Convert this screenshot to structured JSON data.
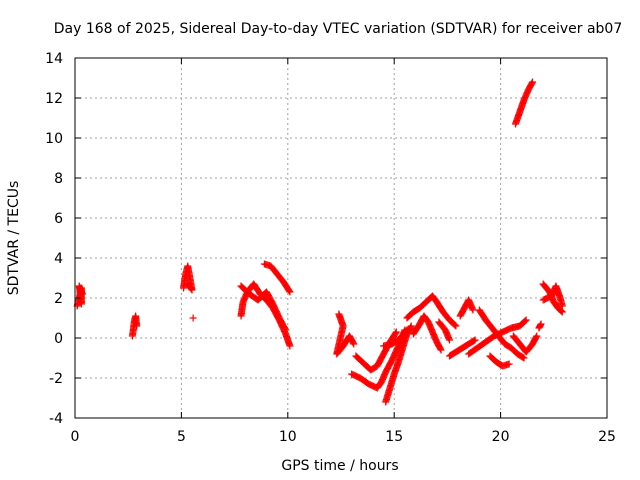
{
  "chart_data": {
    "type": "scatter",
    "title": "Day 168 of 2025, Sidereal Day-to-day VTEC variation (SDTVAR) for receiver ab07",
    "xlabel": "GPS time / hours",
    "ylabel": "SDTVAR / TECUs",
    "xlim": [
      0,
      25
    ],
    "ylim": [
      -4,
      14
    ],
    "xticks": [
      0,
      5,
      10,
      15,
      20,
      25
    ],
    "yticks": [
      -4,
      -2,
      0,
      2,
      4,
      6,
      8,
      10,
      12,
      14
    ],
    "grid": true,
    "marker": "+",
    "color": "#ff0000",
    "series": [
      {
        "name": "SDTVAR",
        "segments": [
          [
            [
              0.1,
              1.6
            ],
            [
              0.2,
              2.0
            ],
            [
              0.3,
              2.5
            ],
            [
              0.3,
              1.7
            ],
            [
              0.2,
              2.6
            ],
            [
              0.35,
              2.2
            ]
          ],
          [
            [
              2.7,
              0.1
            ],
            [
              2.75,
              0.5
            ],
            [
              2.8,
              0.9
            ],
            [
              2.85,
              1.1
            ],
            [
              2.9,
              0.6
            ]
          ],
          [
            [
              5.1,
              2.5
            ],
            [
              5.2,
              3.2
            ],
            [
              5.3,
              3.6
            ],
            [
              5.4,
              3.0
            ],
            [
              5.5,
              2.4
            ],
            [
              5.3,
              2.7
            ]
          ],
          [
            [
              5.55,
              1.0
            ]
          ],
          [
            [
              7.8,
              1.1
            ],
            [
              7.9,
              1.8
            ],
            [
              8.1,
              2.3
            ],
            [
              8.4,
              2.7
            ],
            [
              8.7,
              2.2
            ],
            [
              9.0,
              1.9
            ],
            [
              9.3,
              1.5
            ],
            [
              9.6,
              0.9
            ],
            [
              9.9,
              0.2
            ],
            [
              10.1,
              -0.4
            ]
          ],
          [
            [
              7.8,
              2.6
            ],
            [
              8.2,
              2.2
            ],
            [
              8.6,
              1.9
            ],
            [
              9.0,
              2.3
            ],
            [
              9.3,
              1.7
            ],
            [
              9.6,
              1.0
            ],
            [
              9.9,
              0.4
            ]
          ],
          [
            [
              8.9,
              3.7
            ],
            [
              9.2,
              3.6
            ],
            [
              9.5,
              3.2
            ],
            [
              9.8,
              2.8
            ],
            [
              10.1,
              2.3
            ]
          ],
          [
            [
              12.4,
              1.2
            ],
            [
              12.6,
              0.6
            ],
            [
              12.3,
              -0.8
            ],
            [
              12.6,
              -0.4
            ],
            [
              12.9,
              0.1
            ],
            [
              13.1,
              -0.3
            ]
          ],
          [
            [
              13.0,
              -1.8
            ],
            [
              13.4,
              -2.0
            ],
            [
              13.8,
              -2.3
            ],
            [
              14.2,
              -2.5
            ],
            [
              14.4,
              -2.2
            ],
            [
              14.6,
              -1.7
            ],
            [
              14.9,
              -1.1
            ],
            [
              15.2,
              -0.4
            ],
            [
              15.5,
              0.4
            ]
          ],
          [
            [
              13.2,
              -0.9
            ],
            [
              13.6,
              -1.3
            ],
            [
              13.9,
              -1.6
            ],
            [
              14.2,
              -1.4
            ],
            [
              14.5,
              -0.8
            ],
            [
              14.8,
              -0.2
            ],
            [
              15.1,
              0.3
            ]
          ],
          [
            [
              14.5,
              -0.4
            ],
            [
              14.9,
              -0.3
            ],
            [
              15.3,
              0.0
            ],
            [
              15.6,
              0.4
            ]
          ],
          [
            [
              14.6,
              -3.2
            ],
            [
              14.8,
              -2.5
            ],
            [
              15.0,
              -1.8
            ],
            [
              15.2,
              -1.2
            ],
            [
              15.4,
              -0.5
            ],
            [
              15.6,
              0.2
            ],
            [
              15.8,
              0.6
            ]
          ],
          [
            [
              15.6,
              1.0
            ],
            [
              15.9,
              1.3
            ],
            [
              16.2,
              1.5
            ],
            [
              16.5,
              1.8
            ],
            [
              16.8,
              2.1
            ],
            [
              17.0,
              1.8
            ],
            [
              17.3,
              1.3
            ],
            [
              17.6,
              0.9
            ],
            [
              17.9,
              0.6
            ]
          ],
          [
            [
              15.9,
              0.2
            ],
            [
              16.2,
              0.7
            ],
            [
              16.4,
              1.1
            ],
            [
              16.6,
              0.8
            ],
            [
              16.8,
              0.3
            ],
            [
              17.0,
              -0.2
            ],
            [
              17.2,
              -0.6
            ]
          ],
          [
            [
              17.6,
              -0.9
            ],
            [
              17.9,
              -0.7
            ],
            [
              18.2,
              -0.5
            ],
            [
              18.5,
              -0.3
            ],
            [
              18.8,
              -0.1
            ]
          ],
          [
            [
              18.1,
              1.1
            ],
            [
              18.3,
              1.5
            ],
            [
              18.5,
              1.9
            ],
            [
              18.7,
              1.4
            ]
          ],
          [
            [
              17.1,
              0.8
            ],
            [
              17.4,
              0.4
            ],
            [
              17.6,
              -0.1
            ]
          ],
          [
            [
              18.5,
              -0.8
            ],
            [
              18.9,
              -0.5
            ],
            [
              19.3,
              -0.2
            ],
            [
              19.7,
              0.1
            ],
            [
              20.1,
              0.3
            ],
            [
              20.5,
              0.5
            ],
            [
              20.9,
              0.6
            ],
            [
              21.2,
              0.9
            ]
          ],
          [
            [
              19.0,
              1.4
            ],
            [
              19.3,
              0.9
            ],
            [
              19.6,
              0.5
            ],
            [
              19.9,
              0.1
            ],
            [
              20.2,
              -0.3
            ],
            [
              20.5,
              -0.5
            ],
            [
              20.8,
              -0.8
            ],
            [
              21.1,
              -1.0
            ]
          ],
          [
            [
              19.5,
              -0.9
            ],
            [
              19.8,
              -1.2
            ],
            [
              20.1,
              -1.4
            ],
            [
              20.4,
              -1.3
            ]
          ],
          [
            [
              20.6,
              0.1
            ],
            [
              20.9,
              -0.3
            ],
            [
              21.2,
              -0.7
            ],
            [
              21.5,
              -0.3
            ],
            [
              21.7,
              0.1
            ]
          ],
          [
            [
              20.7,
              10.7
            ],
            [
              20.9,
              11.3
            ],
            [
              21.1,
              11.9
            ],
            [
              21.3,
              12.4
            ],
            [
              21.5,
              12.8
            ]
          ],
          [
            [
              21.8,
              0.5
            ],
            [
              21.9,
              0.7
            ]
          ],
          [
            [
              22.0,
              2.7
            ],
            [
              22.3,
              2.3
            ],
            [
              22.5,
              1.8
            ],
            [
              22.7,
              1.5
            ],
            [
              22.9,
              1.3
            ]
          ],
          [
            [
              22.0,
              1.9
            ],
            [
              22.4,
              2.1
            ],
            [
              22.6,
              2.6
            ],
            [
              22.8,
              2.0
            ],
            [
              22.9,
              1.6
            ]
          ]
        ]
      }
    ]
  }
}
